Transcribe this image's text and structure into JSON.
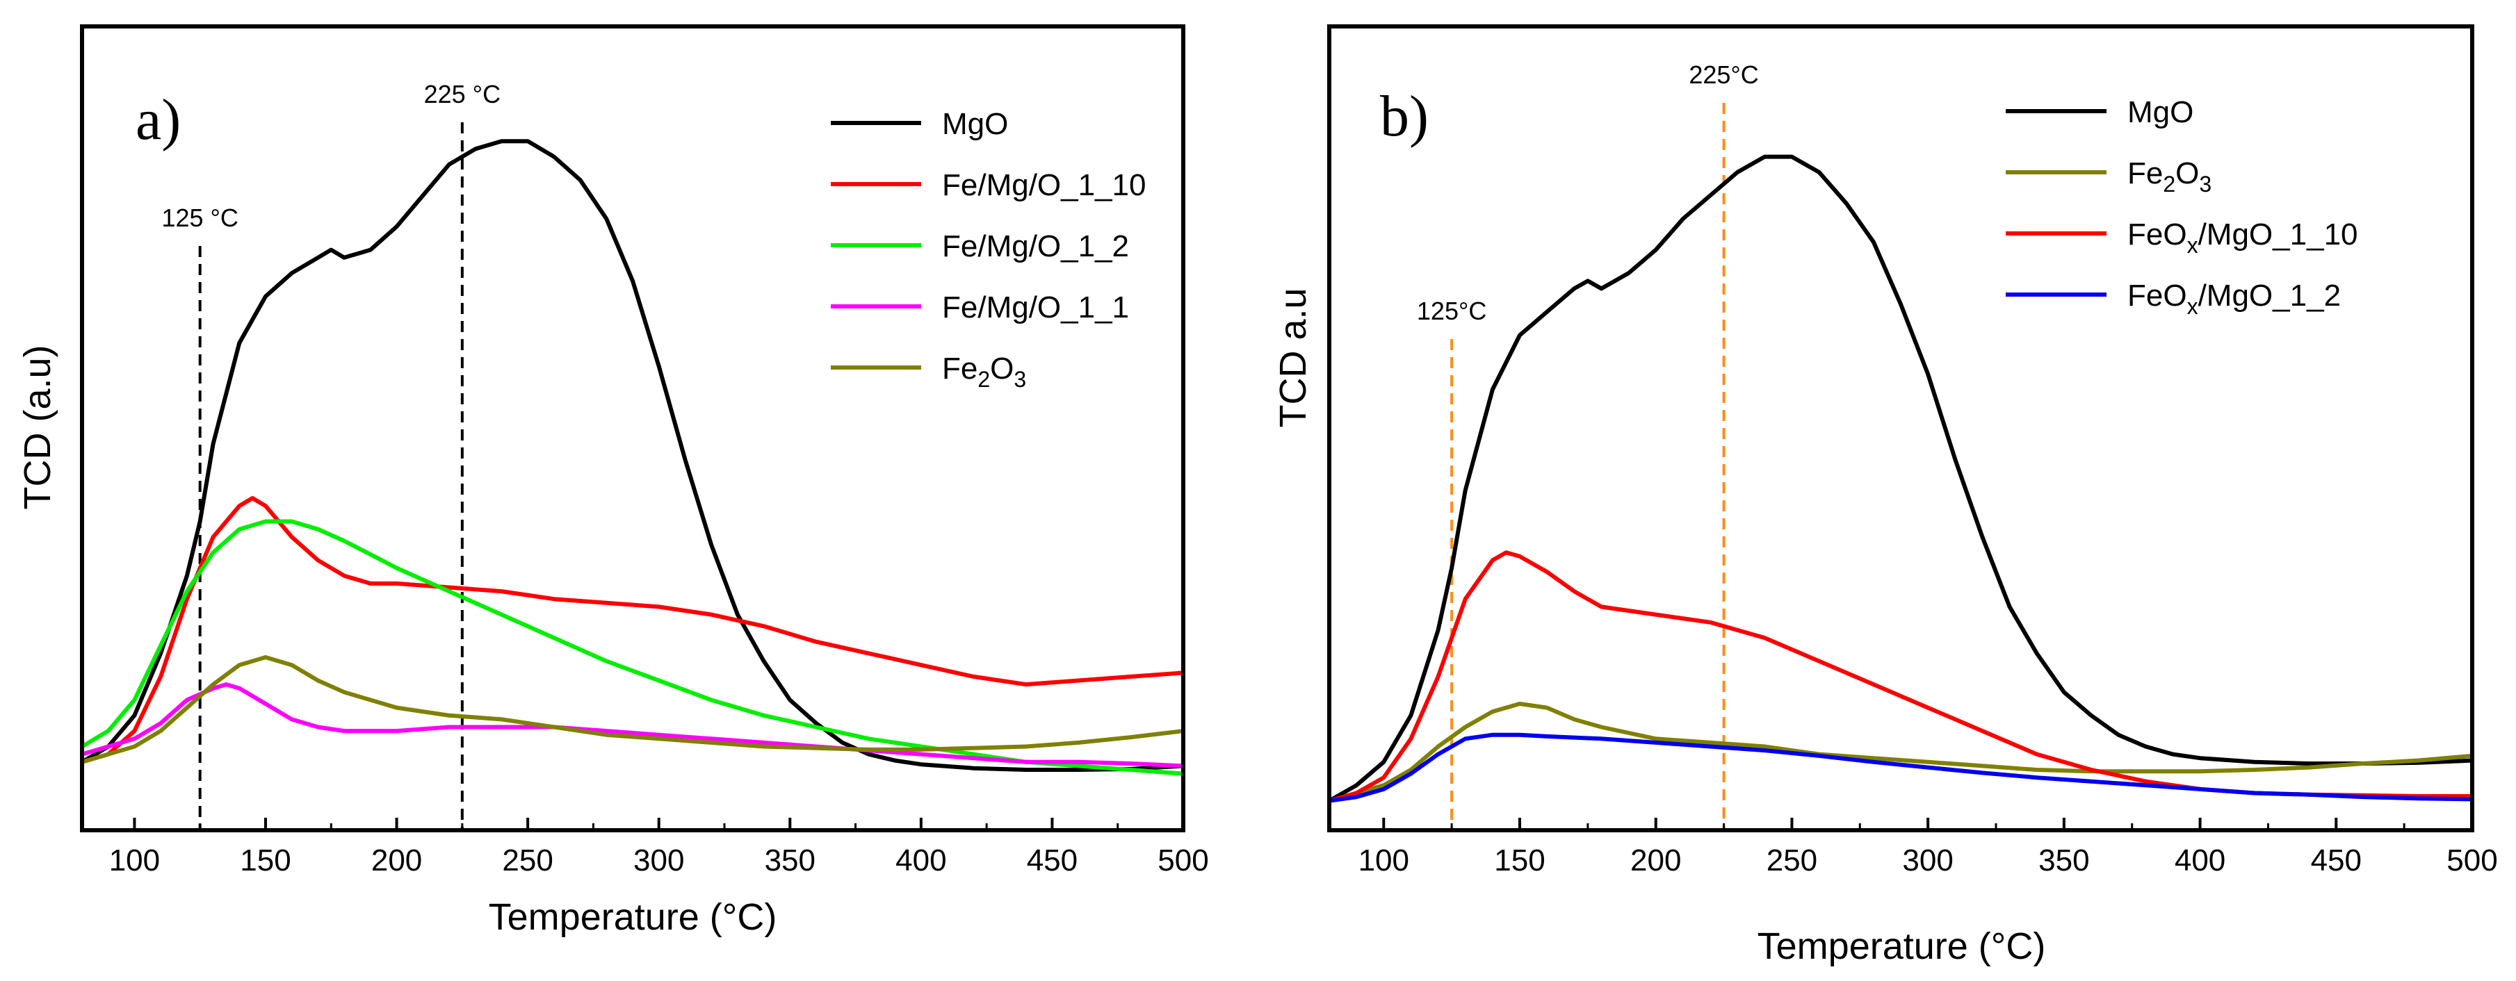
{
  "chart_data": [
    {
      "type": "line",
      "panel_label": "a)",
      "xlabel": "Temperature (°C)",
      "ylabel": "TCD (a.u)",
      "xlim": [
        80,
        500
      ],
      "ylim": [
        0,
        100
      ],
      "xticks": [
        100,
        150,
        200,
        250,
        300,
        350,
        400,
        450,
        500
      ],
      "legend_position": "top-right",
      "annotations": [
        {
          "x": 125,
          "label": "125 °C",
          "color": "#000000"
        },
        {
          "x": 225,
          "label": "225 °C",
          "color": "#000000"
        }
      ],
      "series": [
        {
          "name": "MgO",
          "name_base": "MgO",
          "sub": "",
          "tail": "",
          "color": "#000000",
          "x": [
            80,
            90,
            100,
            110,
            120,
            125,
            130,
            140,
            150,
            160,
            170,
            175,
            180,
            190,
            200,
            210,
            220,
            230,
            240,
            250,
            260,
            270,
            280,
            290,
            300,
            310,
            320,
            330,
            340,
            350,
            360,
            370,
            380,
            390,
            400,
            420,
            440,
            460,
            480,
            500
          ],
          "y": [
            7,
            9,
            13,
            21,
            31,
            38,
            48,
            61,
            67,
            70,
            72,
            73,
            72,
            73,
            76,
            80,
            84,
            86,
            87,
            87,
            85,
            82,
            77,
            69,
            58,
            46,
            35,
            26,
            20,
            15,
            12,
            9.5,
            8,
            7.2,
            6.7,
            6.2,
            6,
            6,
            6.1,
            6.5
          ]
        },
        {
          "name": "Fe/Mg/O_1_10",
          "name_base": "Fe/Mg/O_1_10",
          "sub": "",
          "tail": "",
          "color": "#ff0000",
          "x": [
            80,
            90,
            100,
            110,
            120,
            130,
            140,
            145,
            150,
            160,
            170,
            180,
            190,
            200,
            220,
            240,
            260,
            280,
            300,
            320,
            340,
            360,
            380,
            400,
            420,
            440,
            460,
            480,
            500
          ],
          "y": [
            7,
            8,
            11,
            18,
            28,
            36,
            40,
            41,
            40,
            36,
            33,
            31,
            30,
            30,
            29.5,
            29,
            28,
            27.5,
            27,
            26,
            24.5,
            22.5,
            21,
            19.5,
            18,
            17,
            17.5,
            18,
            18.5
          ]
        },
        {
          "name": "Fe/Mg/O_1_2",
          "name_base": "Fe/Mg/O_1_2",
          "sub": "",
          "tail": "",
          "color": "#00ee00",
          "x": [
            80,
            90,
            100,
            110,
            120,
            130,
            140,
            150,
            160,
            170,
            180,
            200,
            220,
            240,
            260,
            280,
            300,
            320,
            340,
            360,
            380,
            400,
            420,
            440,
            460,
            480,
            500
          ],
          "y": [
            9,
            11,
            15,
            22,
            29,
            34,
            37,
            38,
            38,
            37,
            35.5,
            32,
            29,
            26,
            23,
            20,
            17.5,
            15,
            13,
            11.5,
            10,
            9,
            8,
            7,
            6.5,
            6,
            5.5
          ]
        },
        {
          "name": "Fe/Mg/O_1_1",
          "name_base": "Fe/Mg/O_1_1",
          "sub": "",
          "tail": "",
          "color": "#ff00ff",
          "x": [
            80,
            90,
            100,
            110,
            120,
            130,
            135,
            140,
            150,
            160,
            170,
            180,
            200,
            220,
            240,
            260,
            280,
            300,
            320,
            340,
            360,
            380,
            400,
            420,
            440,
            460,
            480,
            500
          ],
          "y": [
            8,
            9,
            10,
            12,
            15,
            16.5,
            17,
            16.5,
            14.5,
            12.5,
            11.5,
            11,
            11,
            11.5,
            11.5,
            11.5,
            11,
            10.5,
            10,
            9.5,
            9,
            8.5,
            8,
            7.5,
            7,
            7,
            6.8,
            6.5
          ]
        },
        {
          "name": "Fe2O3",
          "name_base": "Fe",
          "sub": "2",
          "tail": "O",
          "sub2": "3",
          "color": "#808000",
          "x": [
            80,
            90,
            100,
            110,
            120,
            130,
            140,
            150,
            160,
            170,
            180,
            200,
            220,
            240,
            260,
            280,
            300,
            320,
            340,
            360,
            380,
            400,
            420,
            440,
            460,
            480,
            500
          ],
          "y": [
            7,
            8,
            9,
            11,
            14,
            17,
            19.5,
            20.5,
            19.5,
            17.5,
            16,
            14,
            13,
            12.5,
            11.5,
            10.5,
            10,
            9.5,
            9,
            8.8,
            8.6,
            8.6,
            8.8,
            9,
            9.5,
            10.2,
            11
          ]
        }
      ]
    },
    {
      "type": "line",
      "panel_label": "b)",
      "xlabel": "Temperature (°C)",
      "ylabel": "TCD a.u",
      "xlim": [
        80,
        500
      ],
      "ylim": [
        0,
        100
      ],
      "xticks": [
        100,
        150,
        200,
        250,
        300,
        350,
        400,
        450,
        500
      ],
      "legend_position": "top-right",
      "annotations": [
        {
          "x": 125,
          "label": "125°C",
          "color": "#ff8c1a"
        },
        {
          "x": 225,
          "label": "225°C",
          "color": "#ff8c1a"
        }
      ],
      "series": [
        {
          "name": "MgO",
          "name_base": "MgO",
          "sub": "",
          "tail": "",
          "color": "#000000",
          "x": [
            80,
            90,
            100,
            110,
            120,
            125,
            130,
            140,
            150,
            160,
            170,
            175,
            180,
            190,
            200,
            210,
            220,
            230,
            240,
            250,
            260,
            270,
            280,
            290,
            300,
            310,
            320,
            330,
            340,
            350,
            360,
            370,
            380,
            390,
            400,
            420,
            440,
            460,
            480,
            500
          ],
          "y": [
            2,
            4,
            7,
            13,
            24,
            32,
            42,
            55,
            62,
            65,
            68,
            69,
            68,
            70,
            73,
            77,
            80,
            83,
            85,
            85,
            83,
            79,
            74,
            66,
            57,
            46,
            36,
            27,
            21,
            16,
            13,
            10.5,
            9,
            8,
            7.5,
            7,
            6.8,
            6.8,
            6.9,
            7.2
          ]
        },
        {
          "name": "Fe2O3",
          "name_base": "Fe",
          "sub": "2",
          "tail": "O",
          "sub2": "3",
          "color": "#808000",
          "x": [
            80,
            90,
            100,
            110,
            120,
            130,
            140,
            150,
            160,
            170,
            180,
            200,
            220,
            240,
            260,
            280,
            300,
            320,
            340,
            360,
            380,
            400,
            420,
            440,
            460,
            480,
            500
          ],
          "y": [
            2,
            3,
            4,
            6,
            9,
            11.5,
            13.5,
            14.5,
            14,
            12.5,
            11.5,
            10,
            9.5,
            9,
            8,
            7.5,
            7,
            6.5,
            6,
            5.8,
            5.8,
            5.8,
            6,
            6.3,
            6.8,
            7.2,
            7.8
          ]
        },
        {
          "name": "FeOx/MgO_1_10",
          "name_base": "FeO",
          "sub": "x",
          "tail": "/MgO_1_10",
          "color": "#ff0000",
          "x": [
            80,
            90,
            100,
            110,
            120,
            130,
            140,
            145,
            150,
            160,
            170,
            180,
            200,
            220,
            240,
            260,
            280,
            300,
            320,
            340,
            360,
            380,
            400,
            420,
            440,
            460,
            480,
            500
          ],
          "y": [
            2,
            3,
            5,
            10,
            18,
            28,
            33,
            34,
            33.5,
            31.5,
            29,
            27,
            26,
            25,
            23,
            20,
            17,
            14,
            11,
            8,
            6,
            4.5,
            3.5,
            3,
            2.8,
            2.7,
            2.6,
            2.6
          ]
        },
        {
          "name": "FeOx/MgO_1_2",
          "name_base": "FeO",
          "sub": "x",
          "tail": "/MgO_1_2",
          "color": "#0000ee",
          "x": [
            80,
            90,
            100,
            110,
            120,
            130,
            140,
            150,
            160,
            180,
            200,
            220,
            240,
            260,
            280,
            300,
            320,
            340,
            360,
            380,
            400,
            420,
            440,
            460,
            480,
            500
          ],
          "y": [
            2,
            2.5,
            3.5,
            5.5,
            8,
            10,
            10.5,
            10.5,
            10.3,
            10,
            9.5,
            9,
            8.5,
            7.8,
            7,
            6.3,
            5.6,
            5,
            4.5,
            4,
            3.5,
            3,
            2.8,
            2.5,
            2.3,
            2.2
          ]
        }
      ]
    }
  ]
}
